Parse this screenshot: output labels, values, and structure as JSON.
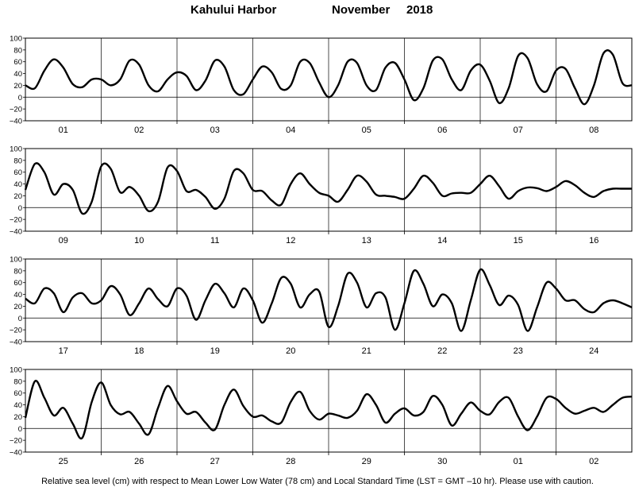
{
  "title": {
    "station": "Kahului Harbor",
    "month": "November",
    "year": "2018"
  },
  "caption": "Relative sea level (cm) with respect to Mean Lower Low Water (78 cm) and Local Standard Time (LST = GMT –10 hr). Please use with caution.",
  "chart_data": {
    "type": "line",
    "y_ticks": [
      "100",
      "80",
      "60",
      "40",
      "20",
      "0",
      "−20",
      "−40"
    ],
    "ylim": [
      -40,
      100
    ],
    "grid": "vertical day lines and horizontal 0-line",
    "panels": [
      {
        "days": [
          "01",
          "02",
          "03",
          "04",
          "05",
          "06",
          "07",
          "08"
        ],
        "hours": [
          0,
          3,
          6,
          9,
          12,
          15,
          18,
          21,
          24,
          27,
          30,
          33,
          36,
          39,
          42,
          45,
          48,
          51,
          54,
          57,
          60,
          63,
          66,
          69,
          72,
          75,
          78,
          81,
          84,
          87,
          90,
          93,
          96,
          99,
          102,
          105,
          108,
          111,
          114,
          117,
          120,
          123,
          126,
          129,
          132,
          135,
          138,
          141,
          144,
          147,
          150,
          153,
          156,
          159,
          162,
          165,
          168,
          171,
          174,
          177,
          180,
          183,
          186,
          189,
          192
        ],
        "values": [
          20,
          15,
          45,
          64,
          50,
          22,
          17,
          30,
          30,
          20,
          30,
          62,
          55,
          20,
          10,
          30,
          42,
          36,
          12,
          28,
          62,
          52,
          12,
          5,
          30,
          52,
          42,
          14,
          20,
          60,
          58,
          25,
          0,
          20,
          60,
          58,
          20,
          12,
          50,
          58,
          30,
          -5,
          15,
          62,
          64,
          30,
          12,
          45,
          55,
          28,
          -10,
          15,
          70,
          66,
          22,
          10,
          45,
          48,
          15,
          -12,
          20,
          74,
          72,
          24,
          20
        ]
      },
      {
        "days": [
          "09",
          "10",
          "11",
          "12",
          "13",
          "14",
          "15",
          "16"
        ],
        "hours": [
          0,
          3,
          6,
          9,
          12,
          15,
          18,
          21,
          24,
          27,
          30,
          33,
          36,
          39,
          42,
          45,
          48,
          51,
          54,
          57,
          60,
          63,
          66,
          69,
          72,
          75,
          78,
          81,
          84,
          87,
          90,
          93,
          96,
          99,
          102,
          105,
          108,
          111,
          114,
          117,
          120,
          123,
          126,
          129,
          132,
          135,
          138,
          141,
          144,
          147,
          150,
          153,
          156,
          159,
          162,
          165,
          168,
          171,
          174,
          177,
          180,
          183,
          186,
          189,
          192
        ],
        "values": [
          30,
          74,
          60,
          22,
          40,
          30,
          -10,
          10,
          70,
          66,
          26,
          35,
          20,
          -6,
          10,
          68,
          62,
          28,
          30,
          18,
          -2,
          15,
          62,
          58,
          30,
          28,
          12,
          5,
          40,
          58,
          40,
          25,
          20,
          10,
          30,
          54,
          44,
          22,
          20,
          18,
          15,
          32,
          54,
          42,
          20,
          24,
          25,
          25,
          40,
          54,
          36,
          15,
          28,
          34,
          33,
          28,
          35,
          45,
          38,
          25,
          18,
          28,
          32,
          32,
          32
        ]
      },
      {
        "days": [
          "17",
          "18",
          "19",
          "20",
          "21",
          "22",
          "23",
          "24"
        ],
        "hours": [
          0,
          3,
          6,
          9,
          12,
          15,
          18,
          21,
          24,
          27,
          30,
          33,
          36,
          39,
          42,
          45,
          48,
          51,
          54,
          57,
          60,
          63,
          66,
          69,
          72,
          75,
          78,
          81,
          84,
          87,
          90,
          93,
          96,
          99,
          102,
          105,
          108,
          111,
          114,
          117,
          120,
          123,
          126,
          129,
          132,
          135,
          138,
          141,
          144,
          147,
          150,
          153,
          156,
          159,
          162,
          165,
          168,
          171,
          174,
          177,
          180,
          183,
          186,
          189,
          192
        ],
        "values": [
          33,
          25,
          50,
          42,
          10,
          35,
          42,
          25,
          30,
          54,
          40,
          5,
          25,
          50,
          32,
          20,
          50,
          38,
          -3,
          30,
          58,
          42,
          18,
          50,
          30,
          -8,
          25,
          68,
          58,
          18,
          40,
          45,
          -15,
          20,
          75,
          60,
          18,
          42,
          35,
          -20,
          25,
          80,
          58,
          20,
          40,
          25,
          -22,
          30,
          82,
          56,
          22,
          38,
          22,
          -22,
          18,
          60,
          50,
          30,
          30,
          15,
          10,
          25,
          30,
          25,
          18
        ]
      },
      {
        "days": [
          "25",
          "26",
          "27",
          "28",
          "29",
          "30",
          "01",
          "02"
        ],
        "hours": [
          0,
          3,
          6,
          9,
          12,
          15,
          18,
          21,
          24,
          27,
          30,
          33,
          36,
          39,
          42,
          45,
          48,
          51,
          54,
          57,
          60,
          63,
          66,
          69,
          72,
          75,
          78,
          81,
          84,
          87,
          90,
          93,
          96,
          99,
          102,
          105,
          108,
          111,
          114,
          117,
          120,
          123,
          126,
          129,
          132,
          135,
          138,
          141,
          144,
          147,
          150,
          153,
          156,
          159,
          162,
          165,
          168,
          171,
          174,
          177,
          180,
          183,
          186,
          189,
          192
        ],
        "values": [
          18,
          80,
          52,
          22,
          35,
          8,
          -16,
          45,
          78,
          40,
          24,
          28,
          8,
          -10,
          35,
          72,
          46,
          25,
          28,
          10,
          -2,
          40,
          66,
          38,
          20,
          22,
          12,
          10,
          45,
          62,
          30,
          15,
          25,
          22,
          18,
          30,
          58,
          40,
          10,
          25,
          34,
          22,
          28,
          55,
          40,
          5,
          25,
          44,
          30,
          24,
          45,
          52,
          20,
          -3,
          20,
          52,
          50,
          35,
          25,
          30,
          35,
          28,
          40,
          52,
          54
        ]
      }
    ]
  }
}
